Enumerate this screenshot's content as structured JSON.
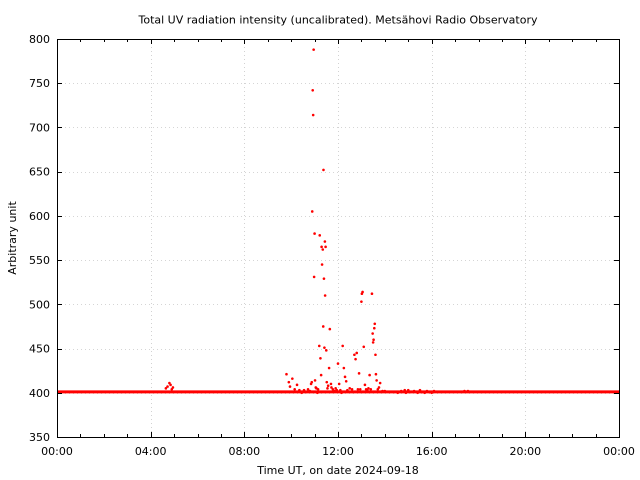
{
  "chart_data": {
    "type": "scatter",
    "title": "Total UV radiation intensity (uncalibrated). Metsähovi Radio Observatory",
    "xlabel": "Time UT, on date 2024-09-18",
    "ylabel": "Arbitrary unit",
    "x_unit": "hours UT",
    "xlim": [
      0,
      24
    ],
    "ylim": [
      350,
      800
    ],
    "x_ticks": [
      {
        "value": 0,
        "label": "00:00"
      },
      {
        "value": 4,
        "label": "04:00"
      },
      {
        "value": 8,
        "label": "08:00"
      },
      {
        "value": 12,
        "label": "12:00"
      },
      {
        "value": 16,
        "label": "16:00"
      },
      {
        "value": 20,
        "label": "20:00"
      },
      {
        "value": 24,
        "label": "00:00"
      }
    ],
    "y_ticks": [
      {
        "value": 350,
        "label": "350"
      },
      {
        "value": 400,
        "label": "400"
      },
      {
        "value": 450,
        "label": "450"
      },
      {
        "value": 500,
        "label": "500"
      },
      {
        "value": 550,
        "label": "550"
      },
      {
        "value": 600,
        "label": "600"
      },
      {
        "value": 650,
        "label": "650"
      },
      {
        "value": 700,
        "label": "700"
      },
      {
        "value": 750,
        "label": "750"
      },
      {
        "value": 800,
        "label": "800"
      }
    ],
    "grid": true,
    "series_color": "#ff0000",
    "baseline": {
      "x_start": 0,
      "x_end": 24,
      "y": 401
    },
    "points": [
      [
        4.65,
        405
      ],
      [
        4.72,
        407
      ],
      [
        4.8,
        411
      ],
      [
        4.85,
        409
      ],
      [
        4.9,
        404
      ],
      [
        4.95,
        406
      ],
      [
        9.8,
        421
      ],
      [
        9.9,
        412
      ],
      [
        9.95,
        407
      ],
      [
        10.05,
        416
      ],
      [
        10.15,
        404
      ],
      [
        10.25,
        409
      ],
      [
        10.35,
        403
      ],
      [
        10.45,
        400
      ],
      [
        10.55,
        403
      ],
      [
        10.65,
        401
      ],
      [
        10.72,
        404
      ],
      [
        10.8,
        402
      ],
      [
        10.85,
        410
      ],
      [
        10.88,
        412
      ],
      [
        10.9,
        605
      ],
      [
        10.92,
        742
      ],
      [
        10.94,
        714
      ],
      [
        10.96,
        788
      ],
      [
        10.98,
        531
      ],
      [
        11.0,
        580
      ],
      [
        11.02,
        414
      ],
      [
        11.05,
        406
      ],
      [
        11.08,
        405
      ],
      [
        11.12,
        400
      ],
      [
        11.15,
        404
      ],
      [
        11.2,
        453
      ],
      [
        11.22,
        578
      ],
      [
        11.25,
        439
      ],
      [
        11.28,
        420
      ],
      [
        11.3,
        565
      ],
      [
        11.32,
        545
      ],
      [
        11.35,
        562
      ],
      [
        11.37,
        475
      ],
      [
        11.38,
        652
      ],
      [
        11.4,
        529
      ],
      [
        11.42,
        451
      ],
      [
        11.44,
        571
      ],
      [
        11.45,
        510
      ],
      [
        11.47,
        565
      ],
      [
        11.5,
        448
      ],
      [
        11.52,
        412
      ],
      [
        11.55,
        405
      ],
      [
        11.58,
        408
      ],
      [
        11.62,
        428
      ],
      [
        11.65,
        472
      ],
      [
        11.7,
        410
      ],
      [
        11.72,
        406
      ],
      [
        11.78,
        404
      ],
      [
        11.85,
        402
      ],
      [
        11.9,
        405
      ],
      [
        11.95,
        403
      ],
      [
        12.0,
        433
      ],
      [
        12.05,
        410
      ],
      [
        12.1,
        403
      ],
      [
        12.15,
        400
      ],
      [
        12.2,
        453
      ],
      [
        12.25,
        428
      ],
      [
        12.3,
        418
      ],
      [
        12.35,
        413
      ],
      [
        12.4,
        403
      ],
      [
        12.5,
        405
      ],
      [
        12.6,
        404
      ],
      [
        12.65,
        401
      ],
      [
        12.7,
        443
      ],
      [
        12.75,
        438
      ],
      [
        12.8,
        445
      ],
      [
        12.85,
        404
      ],
      [
        12.9,
        422
      ],
      [
        12.95,
        404
      ],
      [
        13.0,
        503
      ],
      [
        13.02,
        512
      ],
      [
        13.05,
        514
      ],
      [
        13.1,
        452
      ],
      [
        13.15,
        409
      ],
      [
        13.2,
        404
      ],
      [
        13.25,
        403
      ],
      [
        13.3,
        405
      ],
      [
        13.35,
        420
      ],
      [
        13.4,
        404
      ],
      [
        13.45,
        512
      ],
      [
        13.48,
        467
      ],
      [
        13.5,
        457
      ],
      [
        13.52,
        460
      ],
      [
        13.55,
        473
      ],
      [
        13.57,
        478
      ],
      [
        13.6,
        443
      ],
      [
        13.62,
        421
      ],
      [
        13.65,
        414
      ],
      [
        13.7,
        404
      ],
      [
        13.75,
        406
      ],
      [
        13.8,
        411
      ],
      [
        13.9,
        402
      ],
      [
        14.0,
        402
      ],
      [
        14.2,
        401
      ],
      [
        14.4,
        401
      ],
      [
        14.55,
        400
      ],
      [
        14.7,
        402
      ],
      [
        14.85,
        403
      ],
      [
        14.9,
        400
      ],
      [
        15.0,
        403
      ],
      [
        15.1,
        401
      ],
      [
        15.25,
        402
      ],
      [
        15.4,
        400
      ],
      [
        15.5,
        403
      ],
      [
        15.6,
        401
      ],
      [
        15.7,
        400
      ],
      [
        15.8,
        402
      ],
      [
        15.9,
        401
      ],
      [
        16.0,
        400
      ],
      [
        16.1,
        402
      ],
      [
        17.4,
        402
      ],
      [
        17.55,
        402
      ]
    ]
  }
}
